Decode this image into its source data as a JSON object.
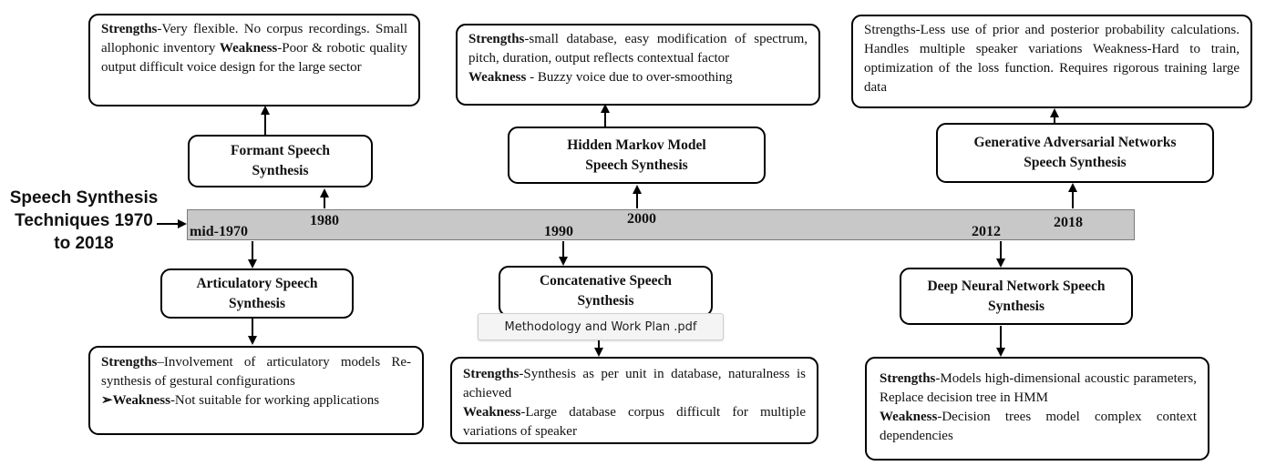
{
  "title": {
    "line1": "Speech Synthesis",
    "line2": "Techniques 1970",
    "line3": "to 2018"
  },
  "timeline": {
    "years": [
      "mid-1970",
      "1980",
      "1990",
      "2000",
      "2012",
      "2018"
    ]
  },
  "techniques": {
    "formant": {
      "line1": "Formant Speech",
      "line2": "Synthesis"
    },
    "articulatory": {
      "line1": "Articulatory Speech",
      "line2": "Synthesis"
    },
    "concatenative": {
      "line1": "Concatenative Speech",
      "line2": "Synthesis"
    },
    "hmm": {
      "line1": "Hidden Markov Model",
      "line2": "Speech Synthesis"
    },
    "dnn": {
      "line1": "Deep Neural Network Speech",
      "line2": "Synthesis"
    },
    "gan": {
      "line1": "Generative Adversarial Networks",
      "line2": "Speech Synthesis"
    }
  },
  "details": {
    "formant": {
      "strengths_label": "Strengths",
      "strengths_text": "-Very flexible. No corpus recordings. Small allophonic inventory",
      "weakness_label": "Weakness",
      "weakness_text": "-Poor & robotic quality output difficult voice design for the large sector"
    },
    "hmm": {
      "strengths_label": "Strengths",
      "strengths_text": "-small database, easy modification of spectrum, pitch, duration, output reflects contextual factor",
      "weakness_label": "Weakness",
      "weakness_text": " - Buzzy voice due to over-smoothing"
    },
    "gan": {
      "text": "Strengths-Less use of prior and posterior probability calculations. Handles multiple speaker variations Weakness-Hard to train, optimization of the loss function. Requires rigorous training large data"
    },
    "articulatory": {
      "strengths_label": "Strengths",
      "strengths_text": "–Involvement of articulatory models Re-synthesis of gestural configurations",
      "bullet": "➢",
      "weakness_label": "Weakness",
      "weakness_text": "-Not suitable for working applications"
    },
    "concatenative": {
      "strengths_label": "Strengths",
      "strengths_text": "-Synthesis as per unit in database, naturalness is achieved",
      "weakness_label": "Weakness",
      "weakness_text": "-Large database corpus difficult for multiple variations of speaker"
    },
    "dnn": {
      "strengths_label": "Strengths",
      "strengths_text": "-Models high-dimensional acoustic parameters, Replace decision tree in HMM",
      "weakness_label": "Weakness",
      "weakness_text": "-Decision trees model complex context dependencies"
    }
  },
  "tooltip": {
    "text": "Methodology and Work Plan .pdf"
  }
}
